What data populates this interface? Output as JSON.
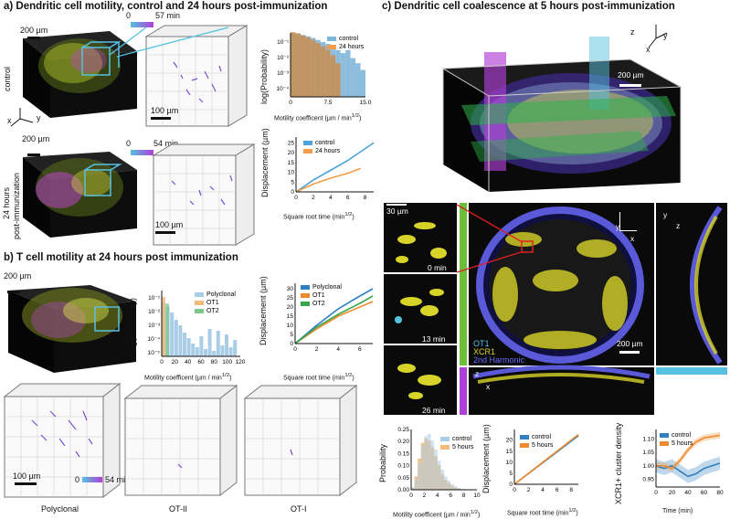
{
  "panel_a": {
    "title": "a) Dendritic cell motility, control and 24 hours post-immunization",
    "scale_200": "200 µm",
    "scale_100": "100 µm",
    "control_label": "control",
    "time_start": "0",
    "time_end_control": "57 min",
    "time_end_24h": "54 min",
    "label_24h": "24 hours",
    "label_post": "post-immunization",
    "axes_x": "x",
    "axes_y": "y",
    "axes_z": "z"
  },
  "panel_b": {
    "title": "b) T cell motility at 24 hours post immunization",
    "scale_200": "200 µm",
    "scale_100": "100 µm",
    "time_start": "0",
    "time_end": "54 min",
    "cube_labels": [
      "Polyclonal",
      "OT-II",
      "OT-I"
    ]
  },
  "panel_c": {
    "title": "c) Dendritic cell coalescence at 5 hours post-immunization",
    "scale_200": "200 µm",
    "scale_30": "30 µm",
    "times": [
      "0 min",
      "13 min",
      "26 min"
    ],
    "channel_ot1": "OT1",
    "channel_xcr1": "XCR1",
    "channel_2nd": "2nd Harmonic",
    "axes_x": "x",
    "axes_y": "y",
    "axes_z": "z"
  },
  "colors": {
    "control": "#4aa3d9",
    "h24": "#f39c4a",
    "hist_control": "#7fb6d9",
    "hist_24h": "#c98d4d",
    "polyclonal": "#2f7fc1",
    "ot1": "#f08a2c",
    "ot2": "#3aa64b",
    "cyan": "#56c1e0",
    "purple": "#b13fd6",
    "green": "#2db34a"
  },
  "chart_data": [
    {
      "type": "bar",
      "panel": "a-top-hist",
      "xlabel": "Motility coefficent (µm / min",
      "xlabel_sup": "1/2",
      "xlabel_end": ")",
      "ylabel": "log(Probability)",
      "xticks": [
        "0",
        "7.5",
        "15.0"
      ],
      "yticks": [
        "10⁻¹",
        "10⁻²",
        "10⁻³",
        "10⁻⁴"
      ],
      "legend": [
        "control",
        "24 hours"
      ],
      "bins": [
        0,
        1,
        2,
        3,
        4,
        5,
        6,
        7,
        8,
        9,
        10,
        11,
        12,
        13,
        14
      ],
      "series": [
        {
          "name": "control",
          "values": [
            0.3,
            0.28,
            0.24,
            0.2,
            0.16,
            0.12,
            0.09,
            0.07,
            0.05,
            0.03,
            0.02,
            0.03,
            0.01,
            0.005,
            0.002
          ]
        },
        {
          "name": "24 hours",
          "values": [
            0.35,
            0.3,
            0.22,
            0.17,
            0.12,
            0.08,
            0.05,
            0.03,
            0.015,
            0.005,
            0,
            0,
            0,
            0,
            0
          ]
        }
      ]
    },
    {
      "type": "line",
      "panel": "a-displacement",
      "xlabel": "Square root time (min",
      "xlabel_sup": "1/2",
      "xlabel_end": ")",
      "ylabel": "Displacement (µm)",
      "xticks": [
        "0",
        "2",
        "4",
        "6",
        "8"
      ],
      "yticks": [
        "0",
        "5",
        "10",
        "15",
        "20",
        "25"
      ],
      "ylim": [
        0,
        27
      ],
      "xlim": [
        0,
        9
      ],
      "series": [
        {
          "name": "control",
          "x": [
            0,
            2,
            4,
            6,
            8,
            9
          ],
          "y": [
            0,
            6,
            11,
            16,
            22,
            25
          ]
        },
        {
          "name": "24 hours",
          "x": [
            0,
            2,
            4,
            6,
            7.5
          ],
          "y": [
            0,
            4,
            7,
            9.5,
            12
          ]
        }
      ]
    },
    {
      "type": "bar",
      "panel": "b-hist",
      "xlabel": "Motility coefficent (µm / min",
      "xlabel_sup": "1/2",
      "xlabel_end": ")",
      "ylabel": "log(Probability)",
      "xticks": [
        "0",
        "20",
        "40",
        "60",
        "80",
        "100",
        "120"
      ],
      "yticks": [
        "10⁻¹",
        "10⁻²",
        "10⁻³",
        "10⁻⁴",
        "10⁻⁵"
      ],
      "legend": [
        "Polyclonal",
        "OT1",
        "OT2"
      ]
    },
    {
      "type": "line",
      "panel": "b-displacement",
      "xlabel": "Square root time (min",
      "xlabel_sup": "1/2",
      "xlabel_end": ")",
      "ylabel": "Displacement (µm)",
      "xticks": [
        "0",
        "2",
        "4",
        "6"
      ],
      "yticks": [
        "0",
        "5",
        "10",
        "15",
        "20",
        "25",
        "30"
      ],
      "ylim": [
        0,
        32
      ],
      "xlim": [
        0,
        7.2
      ],
      "series": [
        {
          "name": "Polyclonal",
          "x": [
            0,
            2,
            4,
            6,
            7.2
          ],
          "y": [
            0,
            10,
            19,
            26,
            30
          ]
        },
        {
          "name": "OT1",
          "x": [
            0,
            2,
            4,
            6,
            7.2
          ],
          "y": [
            0,
            8,
            15,
            20,
            23
          ]
        },
        {
          "name": "OT2",
          "x": [
            0,
            2,
            4,
            6,
            7.2
          ],
          "y": [
            0,
            9,
            16,
            22,
            26
          ]
        }
      ]
    },
    {
      "type": "bar",
      "panel": "c-hist",
      "xlabel": "Motility coefficent (µm / min",
      "xlabel_sup": "1/2",
      "xlabel_end": ")",
      "ylabel": "Probability",
      "xticks": [
        "0",
        "2",
        "4",
        "6",
        "8",
        "10"
      ],
      "yticks": [
        "0.00",
        "0.05",
        "0.10",
        "0.15",
        "0.20",
        "0.25"
      ],
      "legend": [
        "control",
        "5 hours"
      ]
    },
    {
      "type": "line",
      "panel": "c-displacement",
      "xlabel": "Square root time (min",
      "xlabel_sup": "1/2",
      "xlabel_end": ")",
      "ylabel": "Displacement (µm)",
      "xticks": [
        "0",
        "2",
        "4",
        "6",
        "8"
      ],
      "yticks": [
        "0",
        "5",
        "10",
        "15",
        "20"
      ],
      "ylim": [
        0,
        24
      ],
      "xlim": [
        0,
        9
      ],
      "series": [
        {
          "name": "control",
          "x": [
            0,
            9
          ],
          "y": [
            0,
            22
          ]
        },
        {
          "name": "5 hours",
          "x": [
            0,
            9
          ],
          "y": [
            0,
            22.5
          ]
        }
      ]
    },
    {
      "type": "line",
      "panel": "c-cluster",
      "xlabel": "Time (min)",
      "ylabel": "XCR1+ cluster density",
      "xticks": [
        "0",
        "20",
        "40",
        "60",
        "80"
      ],
      "yticks": [
        "0.95",
        "1.00",
        "1.05",
        "1.10"
      ],
      "ylim": [
        0.92,
        1.13
      ],
      "xlim": [
        0,
        80
      ],
      "series": [
        {
          "name": "control",
          "x": [
            0,
            10,
            20,
            30,
            40,
            50,
            60,
            70,
            80
          ],
          "y": [
            1.0,
            0.99,
            1.0,
            0.98,
            0.96,
            0.97,
            0.99,
            1.0,
            1.01
          ]
        },
        {
          "name": "5 hours",
          "x": [
            0,
            10,
            20,
            30,
            40,
            50,
            60,
            70,
            80
          ],
          "y": [
            1.0,
            1.0,
            0.99,
            1.02,
            1.06,
            1.09,
            1.105,
            1.11,
            1.115
          ]
        }
      ]
    }
  ]
}
